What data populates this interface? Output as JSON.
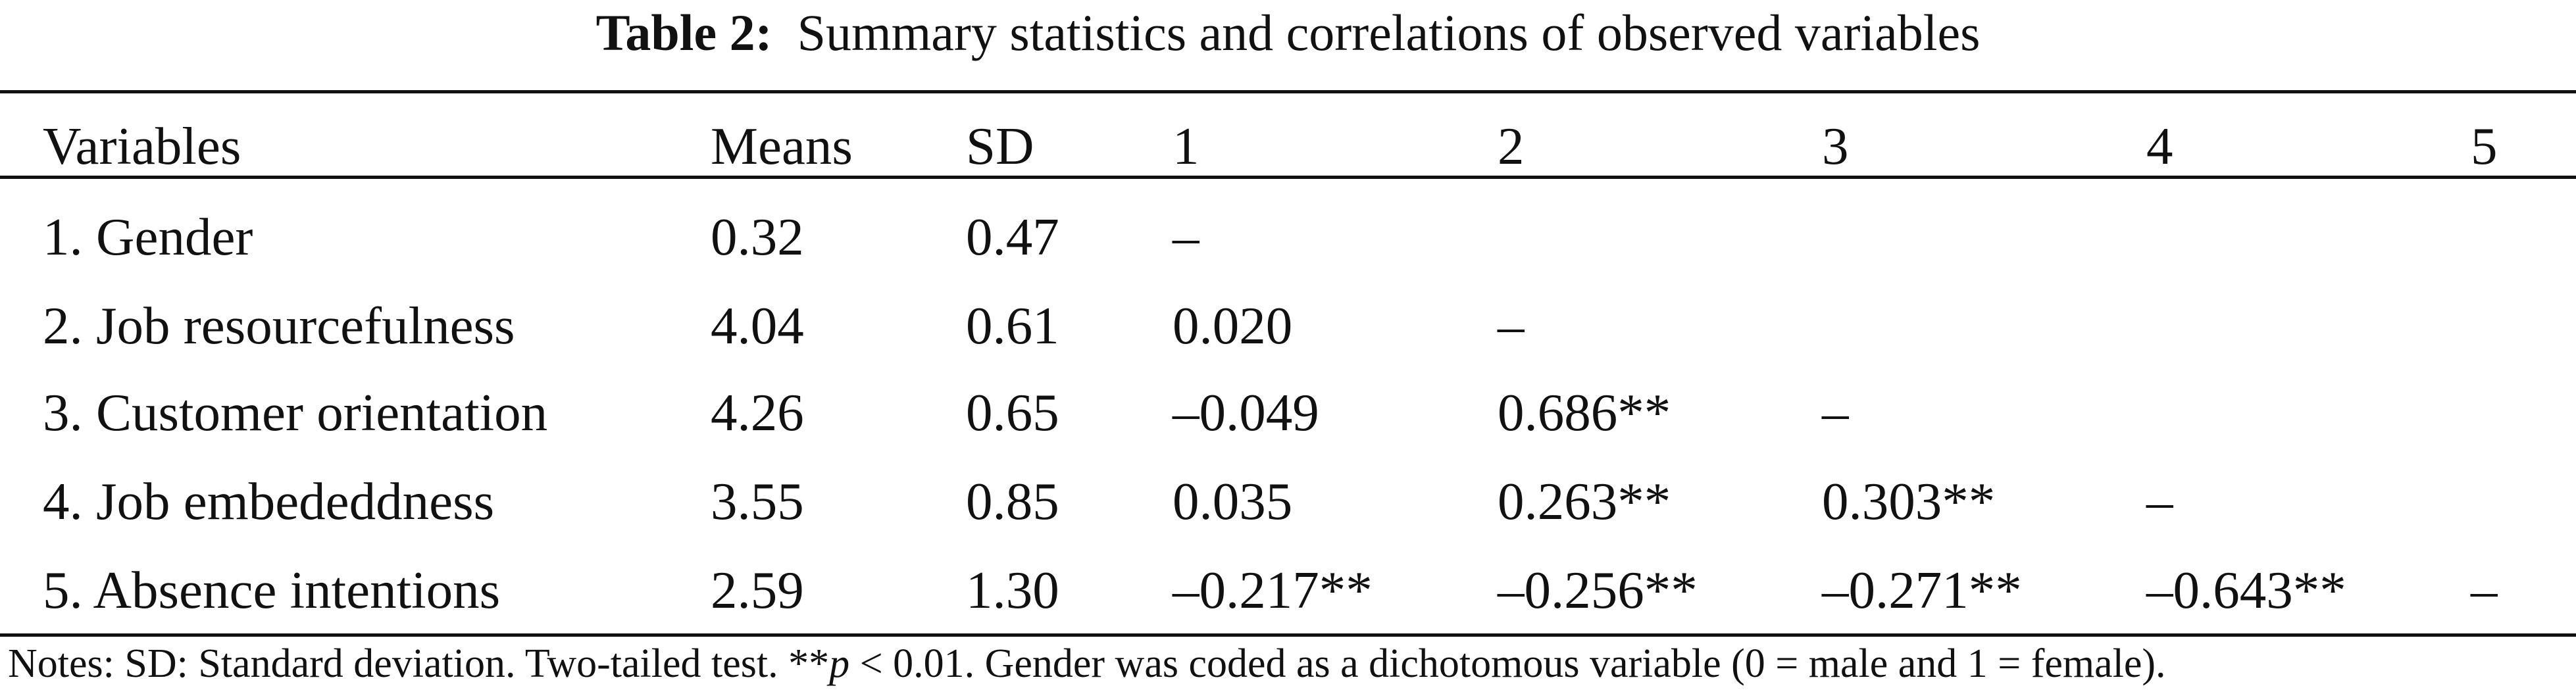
{
  "title": {
    "label": "Table 2:",
    "text": "Summary statistics and correlations of observed variables"
  },
  "table": {
    "headers": [
      "Variables",
      "Means",
      "SD",
      "1",
      "2",
      "3",
      "4",
      "5"
    ],
    "rows": [
      [
        "1. Gender",
        "0.32",
        "0.47",
        "–",
        "",
        "",
        "",
        ""
      ],
      [
        "2. Job resourcefulness",
        "4.04",
        "0.61",
        "0.020",
        "–",
        "",
        "",
        ""
      ],
      [
        "3. Customer orientation",
        "4.26",
        "0.65",
        "–0.049",
        "0.686**",
        "–",
        "",
        ""
      ],
      [
        "4. Job embededdness",
        "3.55",
        "0.85",
        "0.035",
        "0.263**",
        "0.303**",
        "–",
        ""
      ],
      [
        "5. Absence intentions",
        "2.59",
        "1.30",
        "–0.217**",
        "–0.256**",
        "–0.271**",
        "–0.643**",
        "–"
      ]
    ]
  },
  "notes": {
    "part1": "Notes: SD: Standard deviation. Two-tailed test. **",
    "p": "p",
    "part2": " < 0.01. Gender was coded as a dichotomous variable (0 = male and 1 = female)."
  }
}
